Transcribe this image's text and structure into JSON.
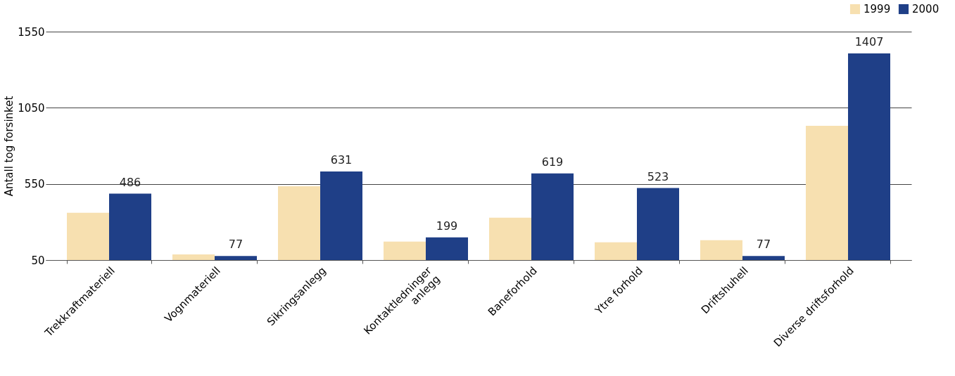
{
  "chart_data": {
    "type": "bar",
    "ylabel": "Antall tog forsinket",
    "categories": [
      "Trekkraftmateriell",
      "Vognmateriell",
      "Sikringsanlegg",
      "Kontaktledninger anlegg",
      "Baneforhold",
      "Ytre forhold",
      "Driftshuhell",
      "Diverse driftsforhold"
    ],
    "series": [
      {
        "name": "1999",
        "color": "#f7e0b0",
        "values": [
          360,
          87,
          535,
          171,
          328,
          166,
          180,
          932
        ]
      },
      {
        "name": "2000",
        "color": "#1f3f87",
        "values": [
          486,
          77,
          631,
          199,
          619,
          523,
          77,
          1407
        ],
        "value_labels": [
          "486",
          "77",
          "631",
          "199",
          "619",
          "523",
          "77",
          "1407"
        ]
      }
    ],
    "ylim": [
      50,
      1550
    ],
    "yticks": [
      50,
      550,
      1050,
      1550
    ],
    "grid": "y",
    "legend": "top right"
  }
}
